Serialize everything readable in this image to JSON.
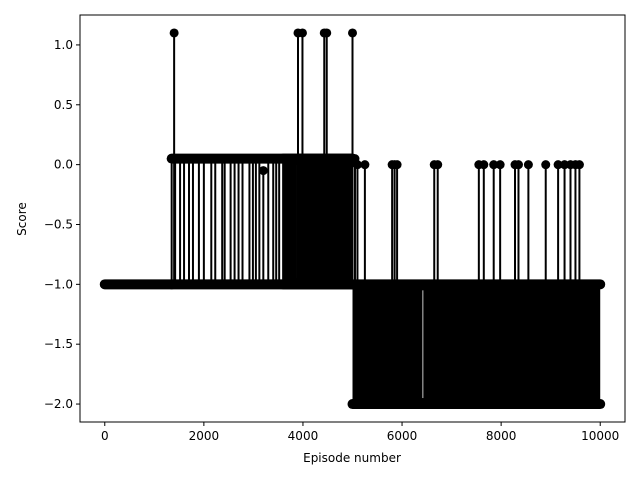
{
  "chart_data": {
    "type": "line",
    "xlabel": "Episode number",
    "ylabel": "Score",
    "xlim": [
      -500,
      10500
    ],
    "ylim": [
      -2.15,
      1.25
    ],
    "x_ticks": [
      0,
      2000,
      4000,
      6000,
      8000,
      10000
    ],
    "x_tick_labels": [
      "0",
      "2000",
      "4000",
      "6000",
      "8000",
      "10000"
    ],
    "y_ticks": [
      1.0,
      0.5,
      0.0,
      -0.5,
      -1.0,
      -1.5,
      -2.0
    ],
    "y_tick_labels": [
      "1.0",
      "0.5",
      "0.0",
      "−0.5",
      "−1.0",
      "−1.5",
      "−2.0"
    ],
    "grid": false,
    "marker": "o",
    "line_color": "#000000",
    "series": [
      {
        "x_range": [
          0,
          10000
        ],
        "baseline_score": -1,
        "segments": [
          {
            "x_start": 0,
            "x_end": 1350,
            "levels": [
              -1
            ]
          },
          {
            "x_start": 1350,
            "x_end": 5000,
            "levels": [
              -1,
              0.05
            ]
          },
          {
            "x_start": 3600,
            "x_end": 5000,
            "levels": [
              -1,
              0.05
            ],
            "dense": true
          },
          {
            "x_start": 5000,
            "x_end": 10000,
            "levels": [
              -2,
              -1
            ],
            "dense": true
          }
        ],
        "spikes_1_1": [
          1400,
          3900,
          3990,
          4430,
          4480,
          5000
        ],
        "spikes_0_05": [
          1350,
          1420,
          1520,
          1600,
          1700,
          1780,
          1900,
          2000,
          2150,
          2230,
          2370,
          2420,
          2540,
          2620,
          2700,
          2780,
          2920,
          2990,
          3050,
          3120,
          3300,
          3400,
          3460,
          3520,
          3600,
          3680,
          3760,
          3850,
          3920,
          4050,
          4150,
          4250,
          4320,
          4400,
          4520,
          4600,
          4680,
          4750,
          4830,
          4900,
          4960,
          5050
        ],
        "spikes_neg_0_05": [
          3200
        ],
        "spikes_0_0": [
          5100,
          5250,
          5800,
          5850,
          5900,
          6650,
          6720,
          7550,
          7650,
          7850,
          7980,
          8280,
          8350,
          8550,
          8900,
          9150,
          9280,
          9400,
          9500,
          9580
        ],
        "gaps_in_dense": [
          3860,
          6420
        ]
      }
    ]
  }
}
